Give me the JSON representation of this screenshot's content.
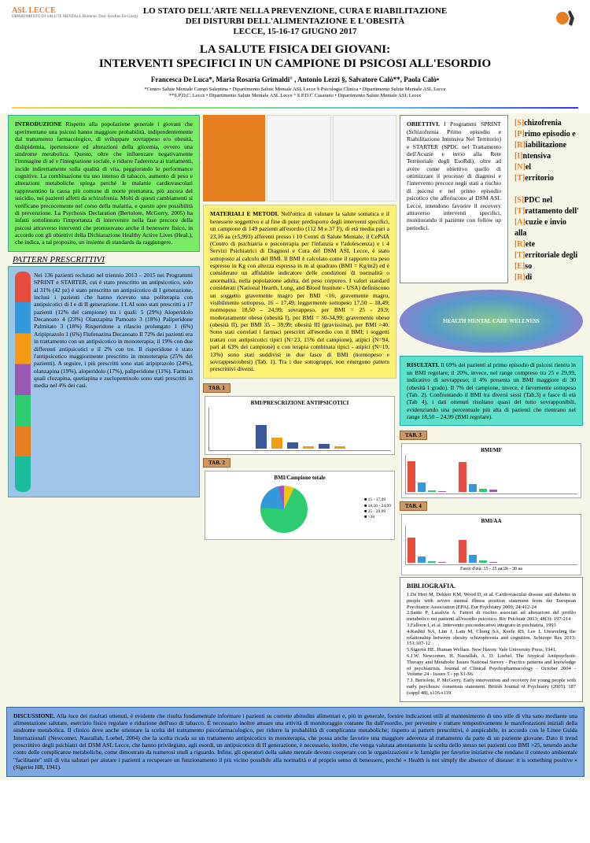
{
  "header": {
    "org": "ASL LECCE",
    "org_sub": "DIPARTIMENTO DI SALUTE MENTALE\nDirettore: Dott. Serafino De Giorgi",
    "conf_line1": "LO STATO DELL'ARTE NELLA PREVENZIONE, CURA E RIABILITAZIONE",
    "conf_line2": "DEI DISTURBI DELL'ALIMENTAZIONE E L'OBESITÀ",
    "conf_line3": "LECCE, 15-16-17 GIUGNO 2017",
    "title_line1": "LA SALUTE FISICA DEI GIOVANI:",
    "title_line2": "INTERVENTI SPECIFICI IN UN CAMPIONE DI PSICOSI ALL'ESORDIO",
    "authors": "Francesca De Luca*, Maria Rosaria Grimaldi° , Antonio Lezzi §, Salvatore Calò**, Paola Calò•",
    "affil1": "*Centro Salute Mentale Campi Salentina • Dipartimento Salute Mentale ASL Lecce    § Psicologia Clinica • Dipartimento Salute Mentale ASL Lecce",
    "affil2": "**S.P.D.C. Lecce • Dipartimento Salute Mentale ASL Lecce    ° S.P.D.C Casarano • Dipartimento Salute Mentale ASL Lecce"
  },
  "intro": {
    "title": "INTRODUZIONE",
    "body": "Rispetto alla popolazione generale i giovani che sperimentano una psicosi hanno maggiore probabilità, indipendentemente dal trattamento farmacologico, di sviluppare sovrappeso e/o obesità, dislipidemia, ipertensione ed alterazioni della glicemia, ovvero una sindrome metabolica. Questo, oltre che influenzare negativamente l'immagine di sé e l'integrazione sociale, e ridurre l'aderenza ai trattamenti, incide indirettamente sulla qualità di vita, peggiorando le performance cognitive. La combinazione tra uso intenso di tabacco, aumento di peso e alterazioni metaboliche spiega perché le malattie cardiovascolari rappresentino la causa più comune di morte prematura, più ancora del suicidio, nei pazienti affetti da schizofrenia.\nMolti di questi cambiamenti si verificano precocemente nel corso della malattia, e questo apre possibilità di prevenzione.\nLa Psychosis Declaration (Bertolote, McGorry, 2005) ha infatti sottolineato l'importanza di intervenire nella fase precoce della psicosi attraverso interventi che promuovano anche il benessere fisico, in accordo con gli obiettivi della Dichiarazione Healthy Active Lives (HeaL), che indica, a tal proposito, un insieme di standards da raggiungere."
  },
  "pattern": {
    "heading": "PATTERN PRESCRITTIVI",
    "body": "Nei 136 pazienti reclutati nel triennio 2013 – 2015 nei Programmi SPRINT e STARTER, cui è stato prescritto un antipsicotico, solo al 31% (42 pz) è stato prescritto un antipsicotico di I generazione, inclusi i pazienti che hanno ricevuto una politerapia con antipsicotici di I e di II generazione. I LAI sono stati prescritti a 17 pazienti (12% del campione) tra i quali:\n5 (29%) Aloperidolo Decanoato\n4 (23%) Olanzapina Pamoato\n3 (18%) Paliperidone Palmitato\n3 (18%) Risperidone a rilascio prolungato\n1 (6%) Aripiprazolo\n1 (6%) Flufenazina Decanoato\nIl 72% dei pazienti era in trattamento con un antipsicotico in monoterapia; il 19% con due differenti antipsicotici e il 2% con tre.\nIl risperidone è stato l'antipsicotico maggiormente prescritto in monoterapia (25% dei pazienti). A seguire, i più prescritti sono stati aripiprazolo (24%), olanzapina (19%), aloperidolo (17%), paliperidone (11%). Farmaci quali clozapina, quetiapina e zuclopentixolo sono stati prescritti in media nel 4% dei casi."
  },
  "obiettivi": {
    "title": "OBIETTIVI.",
    "body": "I Programmi SPRINT (Schizofrenia Primo episodio e Riabilitazione Intensiva Nel Territorio) e STARTER (SPDC nel Trattamento dell'Acuzie e invio alla Rete Territoriale degli EsoRdi), oltre ad avere come obiettivo quello di ottimizzare il processo di diagnosi e l'intervento precoce negli stati a rischio di psicosi e nel primo episodio psicotico che afferiscono al DSM ASL Lecce, intendono favorire il recovery attraverso interventi specifici, monitorando il paziente con follow up periodici."
  },
  "sprint": {
    "s": "[S]chizofrenia",
    "p": "[P]rimo episodio e",
    "r": "[R]iabilitazione",
    "i": "[I]ntensiva",
    "n": "[N]el",
    "t": "[T]erritorio",
    "s2": "[S]PDC nel",
    "t2": "[T]rattamento dell'",
    "a2": "[A]cuzie e invio alla",
    "r2": "[R]ete",
    "t3": "[T]erritoriale degli",
    "e2": "[E]so",
    "r3": "[R]di"
  },
  "materiali": {
    "title": "MATERIALI E METODI.",
    "body": "Nell'ottica di valutare la salute somatica e il benessere soggettivo e al fine di poter predisporre degli interventi specifici, un campione di 149 pazienti all'esordio (112 M e 37 F), di età media pari a 23,16 aa (±5,993) afferenti presso i 10 Centri di Salute Mentale, il CePsIA (Centro di psichiatria e psicoterapia per l'infanzia e l'adolescenza) e i 4 Servizi Psichiatrici di Diagnosi e Cura del DSM ASL Lecce, è stato sottoposto al calcolo del BMI. Il BMI è calcolato come il rapporto tra peso espresso in Kg con altezza espressa in m al quadrato (BMI = Kg/m2) ed è considerato un affidabile indicatore delle condizioni di normalità o anormalità, nella popolazione adulta, del peso corporeo. I valori standard considerati (National Hearth, Lung, and Blood Institute - USA) definiscono un soggetto gravemente magro per BMI <16; gravemente magro, visibilmente sottopeso, 16 – 17,49; leggermente sottopeso 17,50 – 18,49; normopeso 18,50 – 24,99; sovrappeso, per BMI = 25 - 29,9; moderatamente obeso (obesità I), per BMI = 30-34,99; gravemente obeso (obesità II), per BMI 35 – 39,99; obesità III (gravissima), per BMI >40.\nSono stati correlati i farmaci prescritti all'esordio con il BMI; i soggetti trattati con antipsicotici tipici (N=23, 15% del campione), atipici (N=94, pari al 63% del campione) e con terapia combinata tipici - atipici (N=19, 13%) sono stati suddivisi in due fasce di BMI (normopeso e sovrappeso/obesi) (Tab. 1). Tra i due sottogruppi, non emergono pattern prescrittivi diversi."
  },
  "risultati": {
    "title": "RISULTATI.",
    "body": "Il 69% dei pazienti al primo episodio di psicosi rientra in un BMI regolare; il 20%, invece, nel range compreso tra 25 e 29,99, indicativo di sovrappeso; il 4% presenta un BMI maggiore di 30 (obesità I grado). Il 7% del campione, invece, è lievemente sottopeso (Tab. 2). Confrontando il BMI tra diversi sessi (Tab.3) e fasce di età (Tab 4), i dati ottenuti risultano quasi del tutto sovrapponibili, evidenziando una percentuale più alta di pazienti che rientrano nel range 18,50 – 24,99 (BMI regolare)."
  },
  "discussione": {
    "title": "DISCUSSIONE.",
    "body": "Alla luce dei risultati ottenuti, è evidente che risulta fondamentale informare i pazienti su corrette abitudini alimentari e, più in generale, fornire indicazioni utili al mantenimento di uno stile di vita sano mediante una alimentazione salutare, esercizio fisico regolare e riduzione dell'uso di tabacco. È necessario inoltre attuare una attività di monitoraggio costante fin dall'esordio, per prevenire e trattare tempestivamente le manifestazioni iniziali della sindrome metabolica.\nIl clinico deve anche orientare la scelta del trattamento psicofarmacologico, per ridurre la probabilità di complicanze metaboliche; rispetto ai pattern prescrittivi, è auspicabile, in accordo con le Linee Guida Internazionali (Newcomer, Nasrallah, Loebel, 2004) che la scelta ricada su un trattamento antipsicotico in monoterapia, che possa anche favorire una maggiore aderenza al trattamento da parte di un paziente giovane. Dato il trend prescrittivo degli psichiatri del DSM ASL Lecce, che hanno privilegiato, agli esordi, un antipsicotico di II generazione, è necessario, inoltre, che venga valutata attentamente la scelta dello stesso nei pazienti con BMI >25, tenendo anche conto delle complicanze metaboliche, come dimostrato da numerosi studi a riguardo.\nInfine, gli operatori della salute mentale devono cooperare con le organizzazioni e le famiglie per favorire iniziative che rendano il contesto ambientale \"facilitante\" stili di vita salutari per aiutare i pazienti a recuperare un funzionamento il più vicino possibile alla normalità e al proprio senso di benessere, perché « Health is not simply the absence of disease: it is something positive » (Sigerist HR, 1941)."
  },
  "charts": {
    "tab1_label": "TAB. 1",
    "tab2_label": "TAB. 2",
    "tab3_label": "TAB. 3",
    "tab4_label": "TAB. 4",
    "chart1_title": "BMI/PRESCRIZIONE ANTIPSICOTICI",
    "chart2_title": "BMI/Campione totale",
    "chart3_title": "BMI/MF",
    "chart4_title": "BMI/AA",
    "chart4_sub": "Fasce d'età: 15 - 25 aa/26 - 30 aa",
    "bar1": {
      "categories": [
        "ANTIPSICOTICI ATIPICI",
        "ANTIPSICOTICI TIPICI",
        "TERAPIA COMBINATA"
      ],
      "series": [
        {
          "name": "18,50-24,99",
          "color": "#3b5998",
          "values": [
            60,
            15,
            12
          ]
        },
        {
          "name": "≥25",
          "color": "#f39c12",
          "values": [
            28,
            6,
            5
          ]
        }
      ],
      "ylim": [
        0,
        100
      ],
      "ytick_step": 20,
      "bg": "#ffffff",
      "grid": "#e0e0e0"
    },
    "pie": {
      "slices": [
        {
          "label": "15 - 17,49",
          "value": 7,
          "color": "#f1c40f"
        },
        {
          "label": "18,50 - 24,99",
          "value": 69,
          "color": "#2ecc71"
        },
        {
          "label": "25 - 29,99",
          "value": 20,
          "color": "#3498db"
        },
        {
          "label": ">30",
          "value": 4,
          "color": "#9b59b6"
        }
      ]
    },
    "bar3": {
      "categories": [
        "M",
        "F"
      ],
      "series": [
        {
          "color": "#e74c3c",
          "values": [
            70,
            68
          ]
        },
        {
          "color": "#3498db",
          "values": [
            22,
            18
          ]
        },
        {
          "color": "#2ecc71",
          "values": [
            5,
            8
          ]
        },
        {
          "color": "#9b59b6",
          "values": [
            3,
            6
          ]
        }
      ],
      "ylim": [
        0,
        80
      ],
      "ytick_step": 20
    },
    "bar4": {
      "categories": [
        "15-25",
        "26-30"
      ],
      "series": [
        {
          "color": "#e74c3c",
          "values": [
            72,
            65
          ]
        },
        {
          "color": "#3498db",
          "values": [
            18,
            24
          ]
        },
        {
          "color": "#2ecc71",
          "values": [
            6,
            7
          ]
        },
        {
          "color": "#9b59b6",
          "values": [
            4,
            4
          ]
        }
      ],
      "ylim": [
        0,
        100
      ],
      "ytick_step": 20
    }
  },
  "biblio": {
    "title": "BIBLIOGRAFIA.",
    "refs": [
      "1.De Hert M, Dekker KM, Wood D, et al. Cardiovascular disease and diabetes in people with severe mental illness position statement from the European Psychiatric Association (EPA). Eur Psychiatry 2009; 24:412-24",
      "2.Santo P, Lasalvia A. Fattori di rischio associati ad alterazioni del profilo metabolico nei pazienti all'esordio psicotico. Riv Psichiatr 2013; 48(3): 197-214",
      "3.Falloon I, et al. Intervento psicoeducativo integrato in psichiatria, 1993",
      "4.Rashid NA, Lim J, Lam M, Chong SA, Keefe RS, Lee J. Unraveling the relationship between obesity schizophrenia and cognition. Schizopr Res 2013; 151:107-12",
      "5.Sigerist HE. Human Welfare. New Haven: Yale University Press, 1941.",
      "6.J.W. Newcomer, H. Nasrallah, A. D. Loebel. The Atypical Antipsychotic Therapy and Metabolic Issues National Survey - Practice patterns and knowledge of psychiatrists. Journal of Clinical Psychopharmacology - October 2004 - Volume 24 - Issues 5 - pp S1-S6.",
      "7.J. Bertolote, P. McGorry. Early intervention and recovery for young people with early psychosis: consensus statement. British Journal of Psychiatry (2005). 187 (suppl 48), s116-s119."
    ]
  },
  "colors": {
    "green": "#7AEB66",
    "blue": "#9EC5E8",
    "yellow": "#FFF176",
    "teal": "#5FE0C8",
    "darkblue": "#7EA6E0",
    "accent": "#e67e22"
  }
}
